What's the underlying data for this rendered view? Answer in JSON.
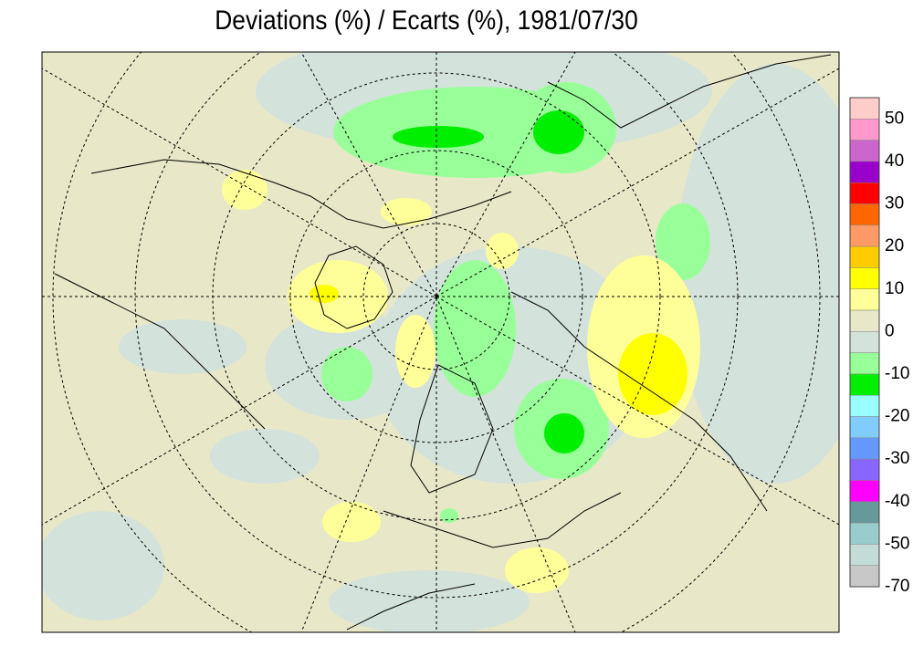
{
  "title": "Deviations (%) / Ecarts (%), 1981/07/30",
  "legend": {
    "labels": [
      "50",
      "40",
      "30",
      "20",
      "10",
      "0",
      "-10",
      "-20",
      "-30",
      "-40",
      "-50",
      "-70"
    ],
    "colors": [
      "#ffcccc",
      "#ff99cc",
      "#cc66cc",
      "#9900cc",
      "#ff0000",
      "#ff6600",
      "#ff9966",
      "#ffcc00",
      "#ffff00",
      "#ffff99",
      "#e8e8c8",
      "#d4e2dc",
      "#99ff99",
      "#00ee00",
      "#99ffff",
      "#80ccff",
      "#6699ff",
      "#8866ff",
      "#ff00ff",
      "#669999",
      "#99cccc",
      "#c4dcd8",
      "#c8c8c8"
    ]
  }
}
